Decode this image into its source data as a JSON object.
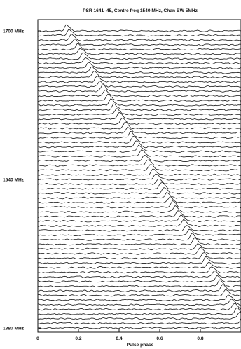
{
  "chart_data": {
    "type": "line",
    "title": "PSR 1641–45, Centre freq 1540 MHz, Chan BW 5MHz",
    "xlabel": "Pulse phase",
    "ylabel": "",
    "x_ticks": [
      "0",
      "0.2",
      "0.4",
      "0.6",
      "0.8"
    ],
    "x_tick_values": [
      0,
      0.2,
      0.4,
      0.6,
      0.8
    ],
    "xlim": [
      0,
      1.0
    ],
    "y_ticks": [
      "1700 MHz",
      "1540 MHz",
      "1380 MHz"
    ],
    "y_tick_values": [
      1700,
      1540,
      1380
    ],
    "ylim": [
      1380,
      1700
    ],
    "series_description_values": {
      "channel_count": 65,
      "channel_bw_mhz": 5,
      "pulse_phase_at_1700_mhz": 0.14,
      "pulse_phase_at_1380_mhz": 1.02
    },
    "grid": false,
    "legend": "none"
  }
}
